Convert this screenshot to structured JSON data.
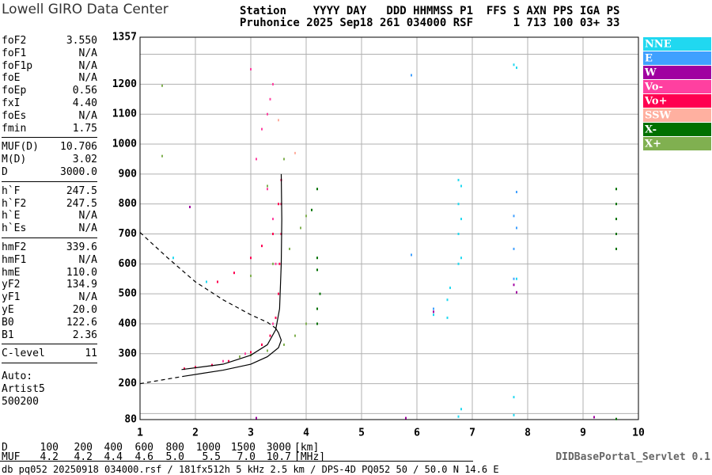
{
  "header": {
    "brand": "Lowell GIRO Data Center",
    "line1": "Station    YYYY DAY   DDD HHMMSS P1  FFS S AXN PPS IGA PS",
    "line2": "Pruhonice 2025 Sep18 261 034000 RSF      1 713 100 03+ 33"
  },
  "parameters": [
    [
      {
        "label": "foF2",
        "value": "3.550"
      },
      {
        "label": "foF1",
        "value": "N/A"
      },
      {
        "label": "foF1p",
        "value": "N/A"
      },
      {
        "label": "foE",
        "value": "N/A"
      },
      {
        "label": "foEp",
        "value": "0.56"
      },
      {
        "label": "fxI",
        "value": "4.40"
      },
      {
        "label": "foEs",
        "value": "N/A"
      },
      {
        "label": "fmin",
        "value": "1.75"
      }
    ],
    [
      {
        "label": "MUF(D)",
        "value": "10.706"
      },
      {
        "label": "M(D)",
        "value": "3.02"
      },
      {
        "label": "D",
        "value": "3000.0"
      }
    ],
    [
      {
        "label": "h`F",
        "value": "247.5"
      },
      {
        "label": "h`F2",
        "value": "247.5"
      },
      {
        "label": "h`E",
        "value": "N/A"
      },
      {
        "label": "h`Es",
        "value": "N/A"
      }
    ],
    [
      {
        "label": "hmF2",
        "value": "339.6"
      },
      {
        "label": "hmF1",
        "value": "N/A"
      },
      {
        "label": "hmE",
        "value": "110.0"
      },
      {
        "label": "yF2",
        "value": "134.9"
      },
      {
        "label": "yF1",
        "value": "N/A"
      },
      {
        "label": "yE",
        "value": "20.0"
      },
      {
        "label": "B0",
        "value": "122.6"
      },
      {
        "label": "B1",
        "value": "2.36"
      }
    ],
    [
      {
        "label": "C-level",
        "value": "11"
      }
    ]
  ],
  "auto": [
    "Auto:",
    "Artist5",
    "500200"
  ],
  "chart_data": {
    "type": "scatter",
    "xlim": [
      1,
      10
    ],
    "xticks": [
      1,
      2,
      3,
      4,
      5,
      6,
      7,
      8,
      9,
      10
    ],
    "ylim": [
      80,
      1357
    ],
    "yticks": [
      80,
      200,
      300,
      400,
      500,
      600,
      700,
      800,
      900,
      1000,
      1100,
      1200,
      1357
    ],
    "yminor": [
      100,
      1300
    ],
    "series": [
      {
        "name": "NNE",
        "color": "#20d8f0",
        "x": [
          6.75,
          6.75,
          6.75,
          6.75,
          6.8,
          6.8,
          6.8,
          6.55,
          6.55,
          6.6,
          7.75,
          7.8,
          6.75,
          6.8,
          7.75,
          7.75,
          6.3,
          7.8,
          1.6,
          2.2
        ],
        "y": [
          600,
          700,
          800,
          880,
          620,
          750,
          860,
          420,
          480,
          520,
          1265,
          1255,
          90,
          115,
          155,
          95,
          430,
          550,
          620,
          540
        ]
      },
      {
        "name": "E",
        "color": "#40a0ff",
        "x": [
          7.75,
          7.75,
          7.8,
          7.75,
          7.8,
          5.9,
          6.3,
          5.9
        ],
        "y": [
          550,
          650,
          720,
          760,
          840,
          1230,
          450,
          630
        ]
      },
      {
        "name": "W",
        "color": "#a000a0",
        "x": [
          7.8,
          7.75,
          5.8,
          9.2,
          6.3,
          3.1,
          1.9
        ],
        "y": [
          505,
          530,
          85,
          88,
          440,
          85,
          790
        ]
      },
      {
        "name": "Vo-",
        "color": "#ff40a0",
        "x": [
          2.5,
          2.9,
          3.2,
          3.4,
          3.45,
          3.4,
          3.3,
          3.1,
          3.2,
          3.3,
          3.4,
          3.0,
          3.35
        ],
        "y": [
          275,
          300,
          330,
          400,
          600,
          750,
          850,
          950,
          1050,
          1100,
          1200,
          1250,
          1150
        ]
      },
      {
        "name": "Vo+",
        "color": "#ff0050",
        "x": [
          1.8,
          2.0,
          2.3,
          2.6,
          2.8,
          3.0,
          3.2,
          3.35,
          3.45,
          3.5,
          3.52,
          3.55,
          3.55,
          3.55,
          2.4,
          2.7,
          3.0,
          3.2,
          3.4,
          3.5
        ],
        "y": [
          250,
          255,
          262,
          275,
          290,
          305,
          330,
          360,
          420,
          500,
          600,
          700,
          800,
          880,
          540,
          570,
          620,
          660,
          700,
          800
        ]
      },
      {
        "name": "SSW",
        "color": "#ffb0a0",
        "x": [
          3.8,
          3.5
        ],
        "y": [
          970,
          1080
        ]
      },
      {
        "name": "X-",
        "color": "#007000",
        "x": [
          4.2,
          4.2,
          4.25,
          4.2,
          4.1,
          9.6,
          9.6,
          9.6,
          9.6,
          9.6,
          9.6,
          4.2,
          4.2
        ],
        "y": [
          400,
          450,
          500,
          850,
          780,
          650,
          700,
          750,
          800,
          850,
          82,
          620,
          580
        ]
      },
      {
        "name": "X+",
        "color": "#80b050",
        "x": [
          2.8,
          3.0,
          3.3,
          3.6,
          3.8,
          4.0,
          3.0,
          3.4,
          3.7,
          3.9,
          4.0,
          3.3,
          3.6,
          1.4,
          1.4
        ],
        "y": [
          290,
          295,
          310,
          330,
          360,
          400,
          560,
          600,
          650,
          720,
          760,
          860,
          950,
          960,
          1195
        ]
      }
    ],
    "lines": [
      {
        "style": "solid",
        "x": [
          1.75,
          2.5,
          3.0,
          3.3,
          3.45,
          3.52,
          3.55,
          3.56,
          3.55
        ],
        "y": [
          247,
          265,
          295,
          330,
          380,
          450,
          600,
          750,
          900
        ]
      },
      {
        "style": "solid",
        "x": [
          1.8,
          2.5,
          3.0,
          3.3,
          3.5,
          3.55,
          3.5,
          3.45
        ],
        "y": [
          225,
          245,
          265,
          290,
          320,
          345,
          370,
          385
        ]
      },
      {
        "style": "dashed",
        "x": [
          1.0,
          1.8
        ],
        "y": [
          200,
          225
        ]
      },
      {
        "style": "dashed",
        "x": [
          1.0,
          1.5,
          2.0,
          2.5,
          3.0,
          3.3,
          3.45
        ],
        "y": [
          705,
          620,
          540,
          480,
          430,
          405,
          385
        ]
      }
    ]
  },
  "footer": {
    "d_label": "D",
    "d_values": [
      "100",
      "200",
      "400",
      "600",
      "800",
      "1000",
      "1500",
      "3000"
    ],
    "d_unit": "[km]",
    "muf_label": "MUF",
    "muf_values": [
      "4.2",
      "4.2",
      "4.4",
      "4.6",
      "5.0",
      "5.5",
      "7.0",
      "10.7"
    ],
    "muf_unit": "[MHz]",
    "servlet": "DIDBasePortal_Servlet 0.1",
    "info": "db pq052 20250918 034000.rsf / 181fx512h 5 kHz 2.5 km / DPS-4D PQ052 50 / 50.0 N 14.6 E"
  }
}
